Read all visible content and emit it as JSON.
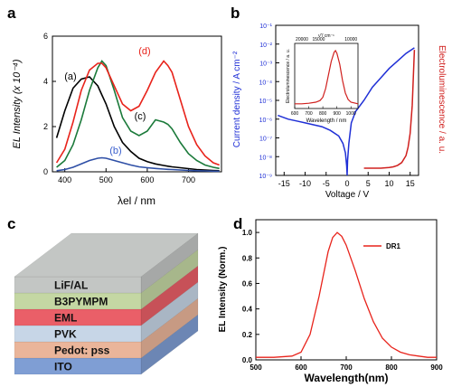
{
  "panels": {
    "a": {
      "letter": "a"
    },
    "b": {
      "letter": "b"
    },
    "c": {
      "letter": "c"
    },
    "d": {
      "letter": "d"
    }
  },
  "device_stack": {
    "layers": [
      {
        "label": "LiF/AL",
        "color": "#c3c6c4"
      },
      {
        "label": "B3PYMPM",
        "color": "#c4d7a3"
      },
      {
        "label": "EML",
        "color": "#ea5f68"
      },
      {
        "label": "PVK",
        "color": "#c7d6e7"
      },
      {
        "label": "Pedot:  pss",
        "color": "#eab59a"
      },
      {
        "label": "ITO",
        "color": "#7f9ed4"
      }
    ]
  },
  "chart_data": [
    {
      "panel": "a",
      "type": "line",
      "xlabel": "λel / nm",
      "ylabel": "EL Intensity (x 10⁻⁴)",
      "xlim": [
        370,
        780
      ],
      "ylim": [
        0,
        6
      ],
      "xticks": [
        400,
        500,
        600,
        700
      ],
      "yticks": [
        0,
        2,
        4,
        6
      ],
      "x": [
        380,
        400,
        420,
        440,
        460,
        480,
        490,
        500,
        520,
        540,
        560,
        580,
        600,
        620,
        640,
        650,
        660,
        680,
        700,
        720,
        740,
        760,
        775
      ],
      "series": [
        {
          "name": "(a)",
          "color": "#000000",
          "label_color": "#000000",
          "values": [
            1.5,
            2.7,
            3.7,
            4.1,
            4.2,
            3.8,
            3.4,
            3.0,
            2.0,
            1.3,
            0.9,
            0.6,
            0.45,
            0.35,
            0.28,
            0.25,
            0.22,
            0.18,
            0.14,
            0.1,
            0.08,
            0.06,
            0.05
          ]
        },
        {
          "name": "(b)",
          "color": "#2e4fa6",
          "label_color": "#3a5fcd",
          "values": [
            0.05,
            0.1,
            0.2,
            0.35,
            0.5,
            0.6,
            0.62,
            0.6,
            0.5,
            0.4,
            0.3,
            0.22,
            0.18,
            0.15,
            0.12,
            0.11,
            0.1,
            0.08,
            0.06,
            0.05,
            0.04,
            0.03,
            0.03
          ]
        },
        {
          "name": "(c)",
          "color": "#1b7a3a",
          "label_color": "#000000",
          "values": [
            0.2,
            0.5,
            1.2,
            2.3,
            3.6,
            4.6,
            4.9,
            4.7,
            3.6,
            2.4,
            1.8,
            1.6,
            1.8,
            2.3,
            2.2,
            2.1,
            1.9,
            1.3,
            0.8,
            0.5,
            0.3,
            0.2,
            0.15
          ]
        },
        {
          "name": "(d)",
          "color": "#e8231b",
          "label_color": "#e8231b",
          "values": [
            0.4,
            1.0,
            2.2,
            3.6,
            4.5,
            4.8,
            4.8,
            4.6,
            3.8,
            3.0,
            2.7,
            2.9,
            3.6,
            4.4,
            4.9,
            4.7,
            4.4,
            3.2,
            2.0,
            1.2,
            0.7,
            0.4,
            0.3
          ]
        }
      ]
    },
    {
      "panel": "b",
      "type": "line",
      "xlabel": "Voltage / V",
      "ylabel_left": "Current density / A cm⁻²",
      "ylabel_right": "Electroluminescence / a. u.",
      "xlim": [
        -17,
        17
      ],
      "xticks": [
        -15,
        -10,
        -5,
        0,
        5,
        10,
        15
      ],
      "y_left_log_exponents": [
        -9,
        -1
      ],
      "yticks_left": [
        "10⁻⁹",
        "10⁻⁸",
        "10⁻⁷",
        "10⁻⁶",
        "10⁻⁵",
        "10⁻⁴",
        "10⁻³",
        "10⁻²",
        "10⁻¹"
      ],
      "current_density": {
        "color": "#1f2fd6",
        "x": [
          -16.5,
          -14,
          -12,
          -10,
          -8,
          -6,
          -4,
          -2,
          -1,
          -0.4,
          -0.1,
          0,
          0.1,
          0.4,
          1,
          2,
          4,
          6,
          8,
          10,
          12,
          14,
          16
        ],
        "log10_y": [
          -5.8,
          -6.0,
          -6.1,
          -6.2,
          -6.3,
          -6.4,
          -6.6,
          -6.9,
          -7.3,
          -7.8,
          -8.5,
          -9.0,
          -8.2,
          -7.3,
          -6.2,
          -5.6,
          -5.0,
          -4.3,
          -3.8,
          -3.3,
          -2.9,
          -2.5,
          -2.2
        ]
      },
      "electroluminescence": {
        "color": "#d0201e",
        "x": [
          4,
          6,
          8,
          10,
          11,
          12,
          13,
          14,
          14.5,
          15,
          15.5,
          16
        ],
        "level": [
          0.0,
          0.0,
          0.0,
          0.005,
          0.01,
          0.02,
          0.04,
          0.09,
          0.15,
          0.25,
          0.45,
          0.85
        ]
      },
      "inset": {
        "type": "line",
        "xlabel": "Wavelength / nm",
        "ylabel": "Electroluminescence / a. u.",
        "top_label": "ν̃ / cm⁻¹",
        "xlim": [
          600,
          1050
        ],
        "xticks": [
          600,
          700,
          800,
          900,
          1000
        ],
        "top_ticks": [
          "20000",
          "15000",
          "10000"
        ],
        "color": "#d0201e",
        "x": [
          600,
          650,
          700,
          750,
          780,
          800,
          820,
          840,
          860,
          880,
          890,
          900,
          920,
          940,
          960,
          980,
          1000,
          1050
        ],
        "values": [
          0.02,
          0.02,
          0.03,
          0.05,
          0.08,
          0.14,
          0.3,
          0.55,
          0.8,
          0.97,
          1.0,
          0.95,
          0.75,
          0.45,
          0.22,
          0.1,
          0.05,
          0.02
        ]
      }
    },
    {
      "panel": "d",
      "type": "line",
      "xlabel": "Wavelength(nm)",
      "ylabel": "EL Intensity (Norm.)",
      "legend": "DR1",
      "legend_position": "top-right",
      "color": "#e8231b",
      "xlim": [
        500,
        900
      ],
      "ylim": [
        0,
        1.1
      ],
      "xticks": [
        500,
        600,
        700,
        800,
        900
      ],
      "yticks": [
        "0.0",
        "0.2",
        "0.4",
        "0.6",
        "0.8",
        "1.0"
      ],
      "x": [
        500,
        540,
        580,
        600,
        620,
        640,
        660,
        670,
        680,
        690,
        700,
        720,
        740,
        760,
        780,
        800,
        820,
        840,
        860,
        880,
        900
      ],
      "values": [
        0.02,
        0.02,
        0.03,
        0.06,
        0.2,
        0.5,
        0.85,
        0.96,
        1.0,
        0.97,
        0.9,
        0.7,
        0.48,
        0.3,
        0.17,
        0.1,
        0.06,
        0.04,
        0.03,
        0.02,
        0.02
      ]
    }
  ]
}
